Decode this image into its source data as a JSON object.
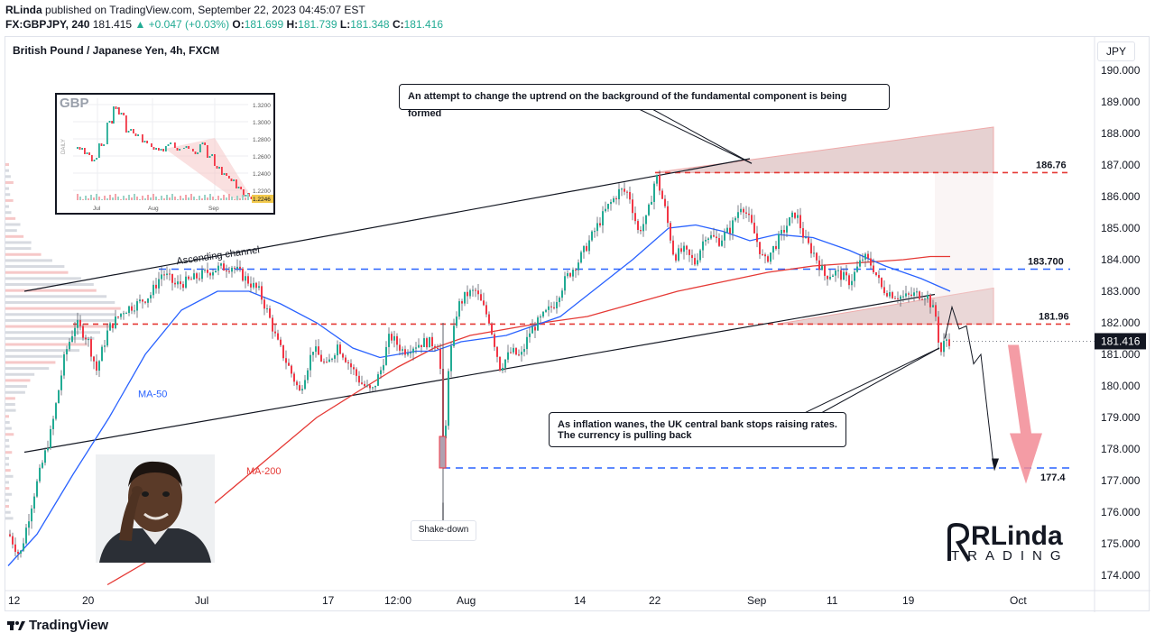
{
  "header": {
    "author": "RLinda",
    "published_text": "published on TradingView.com, September 22, 2023 04:45:07 EST",
    "symbol": "FX:GBPJPY, 240",
    "last": "181.415",
    "change": "▲ +0.047 (+0.03%)",
    "o_label": "O:",
    "o_value": "181.699",
    "h_label": "H:",
    "h_value": "181.739",
    "l_label": "L:",
    "l_value": "181.348",
    "c_label": "C:",
    "c_value": "181.416"
  },
  "chart_title": "British Pound / Japanese Yen, 4h, FXCM",
  "currency": "JPY",
  "notes": {
    "top": "An attempt to change the uptrend on the background of the fundamental component is being formed",
    "bottom_line1": "As inflation wanes, the UK central bank stops raising rates.",
    "bottom_line2": "The currency is pulling back",
    "shake": "Shake-down",
    "channel": "Ascending channel",
    "ma50": "MA-50",
    "ma200": "MA-200"
  },
  "inset": {
    "title": "GBP",
    "side_label": "DAILY",
    "y_ticks": [
      "1.3200",
      "1.3000",
      "1.2800",
      "1.2600",
      "1.2400",
      "1.2200"
    ],
    "x_ticks": [
      "Jul",
      "Aug",
      "Sep"
    ],
    "last_price": "1.2246"
  },
  "logo": {
    "name": "RLinda",
    "sub": "TRADING"
  },
  "footer": {
    "brand": "TradingView"
  },
  "colors": {
    "up": "#22ab94",
    "down": "#f23645",
    "ma50": "#2962ff",
    "ma200": "#e53935",
    "level_blue": "#2962ff",
    "level_red": "#e53935",
    "zone": "#d9b8b8"
  },
  "chart_data": {
    "type": "candlestick",
    "title": "British Pound / Japanese Yen, 4h, FXCM",
    "ylim": [
      173.6,
      190.4
    ],
    "y_ticks": [
      "190.000",
      "189.000",
      "188.000",
      "187.000",
      "186.000",
      "185.000",
      "184.000",
      "183.000",
      "182.000",
      "181.000",
      "180.000",
      "179.000",
      "178.000",
      "177.000",
      "176.000",
      "175.000",
      "174.000"
    ],
    "x_ticks": [
      "12",
      "20",
      "Jul",
      "17",
      "12:00",
      "Aug",
      "14",
      "22",
      "Sep",
      "11",
      "19",
      "Oct"
    ],
    "price_labels": [
      "186.76",
      "183.700",
      "181.96",
      "177.4"
    ],
    "current_price": "181.416",
    "levels": [
      {
        "name": "resistance-186.76",
        "value": 186.76,
        "style": "dashed",
        "color": "red"
      },
      {
        "name": "level-183.700",
        "value": 183.7,
        "style": "dashed",
        "color": "blue"
      },
      {
        "name": "level-181.96",
        "value": 181.96,
        "style": "dashed",
        "color": "red"
      },
      {
        "name": "target-177.4",
        "value": 177.4,
        "style": "dashed",
        "color": "blue"
      }
    ],
    "price_path": [
      [
        8,
        175.3
      ],
      [
        20,
        174.6
      ],
      [
        35,
        176.5
      ],
      [
        55,
        178.6
      ],
      [
        70,
        181.0
      ],
      [
        82,
        182.0
      ],
      [
        95,
        181.5
      ],
      [
        105,
        180.5
      ],
      [
        118,
        181.8
      ],
      [
        135,
        182.4
      ],
      [
        150,
        182.6
      ],
      [
        165,
        182.9
      ],
      [
        178,
        183.6
      ],
      [
        192,
        183.2
      ],
      [
        205,
        183.3
      ],
      [
        220,
        183.5
      ],
      [
        235,
        183.7
      ],
      [
        255,
        183.8
      ],
      [
        270,
        183.4
      ],
      [
        285,
        183.0
      ],
      [
        295,
        182.3
      ],
      [
        305,
        181.4
      ],
      [
        318,
        180.6
      ],
      [
        330,
        179.8
      ],
      [
        345,
        181.2
      ],
      [
        360,
        180.6
      ],
      [
        372,
        181.3
      ],
      [
        385,
        180.7
      ],
      [
        398,
        180.1
      ],
      [
        410,
        179.8
      ],
      [
        420,
        180.5
      ],
      [
        430,
        181.6
      ],
      [
        445,
        181.1
      ],
      [
        458,
        181.3
      ],
      [
        470,
        181.4
      ],
      [
        485,
        181.3
      ],
      [
        490,
        177.4
      ],
      [
        495,
        180.6
      ],
      [
        505,
        182.5
      ],
      [
        515,
        182.9
      ],
      [
        525,
        183.0
      ],
      [
        540,
        182.1
      ],
      [
        552,
        180.6
      ],
      [
        565,
        181.1
      ],
      [
        575,
        180.9
      ],
      [
        585,
        181.7
      ],
      [
        600,
        182.2
      ],
      [
        612,
        182.6
      ],
      [
        625,
        183.4
      ],
      [
        640,
        184.0
      ],
      [
        655,
        184.8
      ],
      [
        670,
        185.6
      ],
      [
        685,
        186.2
      ],
      [
        695,
        186.1
      ],
      [
        705,
        184.9
      ],
      [
        715,
        185.3
      ],
      [
        725,
        186.7
      ],
      [
        735,
        185.6
      ],
      [
        745,
        184.1
      ],
      [
        755,
        184.3
      ],
      [
        768,
        183.9
      ],
      [
        780,
        184.8
      ],
      [
        795,
        184.6
      ],
      [
        808,
        185.0
      ],
      [
        820,
        185.8
      ],
      [
        832,
        185.0
      ],
      [
        845,
        183.9
      ],
      [
        858,
        184.5
      ],
      [
        870,
        185.1
      ],
      [
        880,
        185.5
      ],
      [
        890,
        184.6
      ],
      [
        900,
        184.2
      ],
      [
        912,
        183.5
      ],
      [
        925,
        183.6
      ],
      [
        940,
        183.3
      ],
      [
        955,
        184.1
      ],
      [
        965,
        183.8
      ],
      [
        975,
        183.1
      ],
      [
        988,
        182.9
      ],
      [
        1000,
        182.8
      ],
      [
        1012,
        182.9
      ],
      [
        1025,
        182.9
      ],
      [
        1035,
        182.2
      ],
      [
        1040,
        181.0
      ],
      [
        1046,
        181.5
      ],
      [
        1052,
        181.4
      ]
    ],
    "ma50_path": [
      [
        8,
        174.3
      ],
      [
        40,
        175.3
      ],
      [
        80,
        177.2
      ],
      [
        120,
        179.0
      ],
      [
        160,
        181.0
      ],
      [
        200,
        182.4
      ],
      [
        240,
        183.0
      ],
      [
        275,
        183.0
      ],
      [
        310,
        182.6
      ],
      [
        350,
        182.0
      ],
      [
        390,
        181.2
      ],
      [
        420,
        180.9
      ],
      [
        460,
        181.1
      ],
      [
        480,
        181.1
      ],
      [
        510,
        181.4
      ],
      [
        560,
        181.6
      ],
      [
        620,
        182.2
      ],
      [
        660,
        183.1
      ],
      [
        700,
        184.0
      ],
      [
        740,
        185.0
      ],
      [
        770,
        185.1
      ],
      [
        800,
        184.9
      ],
      [
        830,
        184.6
      ],
      [
        860,
        184.8
      ],
      [
        900,
        184.7
      ],
      [
        940,
        184.3
      ],
      [
        980,
        183.8
      ],
      [
        1020,
        183.4
      ],
      [
        1052,
        183.0
      ]
    ],
    "ma200_path": [
      [
        118,
        173.7
      ],
      [
        160,
        174.4
      ],
      [
        200,
        175.4
      ],
      [
        250,
        176.6
      ],
      [
        300,
        177.8
      ],
      [
        350,
        179.0
      ],
      [
        400,
        179.9
      ],
      [
        440,
        180.6
      ],
      [
        480,
        181.2
      ],
      [
        520,
        181.6
      ],
      [
        560,
        181.8
      ],
      [
        600,
        182.0
      ],
      [
        650,
        182.2
      ],
      [
        700,
        182.6
      ],
      [
        750,
        183.0
      ],
      [
        800,
        183.3
      ],
      [
        850,
        183.6
      ],
      [
        900,
        183.8
      ],
      [
        950,
        183.9
      ],
      [
        1000,
        184.0
      ],
      [
        1030,
        184.1
      ],
      [
        1052,
        184.1
      ]
    ],
    "forecast_path": [
      [
        1046,
        181.5
      ],
      [
        1054,
        182.5
      ],
      [
        1062,
        181.8
      ],
      [
        1070,
        181.9
      ],
      [
        1078,
        180.7
      ],
      [
        1086,
        181.0
      ],
      [
        1100,
        177.5
      ]
    ]
  }
}
